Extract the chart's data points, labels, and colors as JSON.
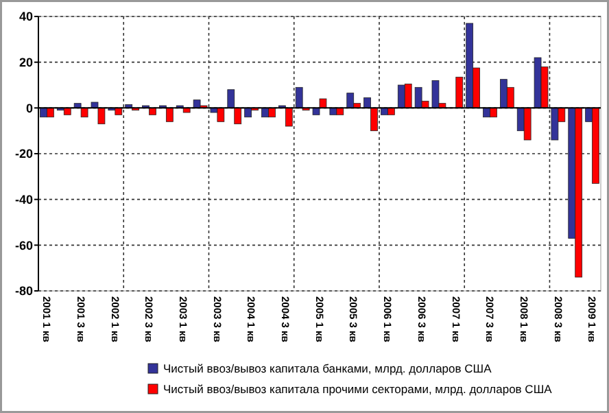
{
  "chart_data": {
    "type": "bar",
    "categories": [
      "2001 1 кв",
      null,
      "2001 3 кв",
      null,
      "2002 1 кв",
      null,
      "2002 3 кв",
      null,
      "2003 1 кв",
      null,
      "2003 3 кв",
      null,
      "2004 1 кв",
      null,
      "2004 3 кв",
      null,
      "2005 1 кв",
      null,
      "2005 3 кв",
      null,
      "2006 1 кв",
      null,
      "2006 3 кв",
      null,
      "2007 1 кв",
      null,
      "2007 3 кв",
      null,
      "2008 1 кв",
      null,
      "2008 3 кв",
      null,
      "2009 1 кв"
    ],
    "series": [
      {
        "name": "Чистый ввоз/вывоз капитала банками, млрд. долларов США",
        "color": "#333399",
        "values": [
          -4,
          -1,
          2,
          2.5,
          -1,
          1.5,
          1,
          1,
          1,
          3.5,
          -2,
          8,
          -4,
          -4,
          1,
          9,
          -3,
          -3,
          6.5,
          4.5,
          -3,
          10,
          9,
          12,
          0,
          37,
          -4,
          12.5,
          -10,
          22,
          -14,
          -57,
          -6
        ]
      },
      {
        "name": "Чистый ввоз/вывоз капитала прочими секторами, млрд. долларов США",
        "color": "#ff0000",
        "values": [
          -4,
          -3,
          -4,
          -7,
          -3,
          -1,
          -3,
          -6,
          -2,
          1,
          -6,
          -7,
          -1,
          -4,
          -8,
          -1,
          4,
          -3,
          2,
          -10,
          -3,
          10.5,
          3,
          2,
          13.5,
          17.5,
          -4,
          9,
          -14,
          18,
          -6,
          -74,
          -33
        ]
      }
    ],
    "ylim": [
      -80,
      40
    ],
    "yticks": [
      -80,
      -60,
      -40,
      -20,
      0,
      20,
      40
    ],
    "grid": true,
    "legend": "bottom"
  }
}
